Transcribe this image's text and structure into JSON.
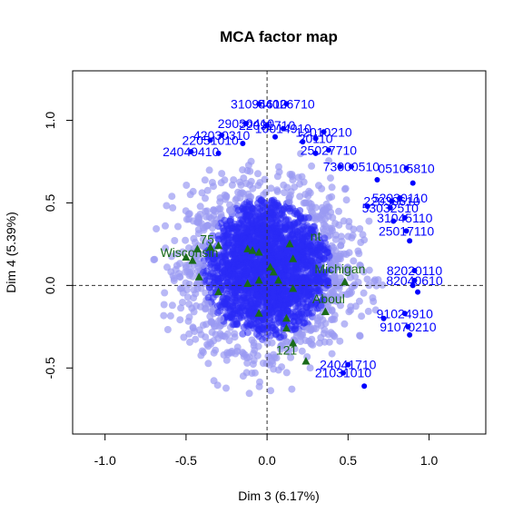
{
  "chart_data": {
    "type": "scatter",
    "title": "MCA factor map",
    "xlabel": "Dim 3 (6.17%)",
    "ylabel": "Dim 4 (5.39%)",
    "xlim": [
      -1.2,
      1.35
    ],
    "ylim": [
      -0.9,
      1.3
    ],
    "xticks": [
      {
        "value": -1.0,
        "label": "-1.0"
      },
      {
        "value": -0.5,
        "label": "-0.5"
      },
      {
        "value": 0.0,
        "label": "0.0"
      },
      {
        "value": 0.5,
        "label": "0.5"
      },
      {
        "value": 1.0,
        "label": "1.0"
      }
    ],
    "yticks": [
      {
        "value": -0.5,
        "label": "-0.5"
      },
      {
        "value": 0.0,
        "label": "0.0"
      },
      {
        "value": 0.5,
        "label": "0.5"
      },
      {
        "value": 1.0,
        "label": "1.0"
      }
    ],
    "reference_lines": {
      "x": 0,
      "y": 0,
      "style": "dashed"
    },
    "colors": {
      "individuals_solid": "#0000ff",
      "individuals_faded": "#9a9af2",
      "categories": "#1a6b1a",
      "reference": "#333333"
    },
    "individual_cloud": {
      "description_count": 2600,
      "center": [
        0.0,
        0.1
      ],
      "spread": [
        0.24,
        0.24
      ],
      "radius_limit": 0.7
    },
    "labeled_individuals": [
      {
        "label": "31094610",
        "x": -0.05,
        "y": 1.1
      },
      {
        "label": "54026710",
        "x": 0.12,
        "y": 1.1
      },
      {
        "label": "29030410",
        "x": -0.13,
        "y": 0.98
      },
      {
        "label": "42030310",
        "x": -0.28,
        "y": 0.91
      },
      {
        "label": "22051010",
        "x": -0.35,
        "y": 0.88
      },
      {
        "label": "22091710",
        "x": 0.0,
        "y": 0.97
      },
      {
        "label": "10014910",
        "x": 0.1,
        "y": 0.95
      },
      {
        "label": "20110",
        "x": 0.3,
        "y": 0.89
      },
      {
        "label": "12010210",
        "x": 0.35,
        "y": 0.93
      },
      {
        "label": "24049410",
        "x": -0.47,
        "y": 0.81
      },
      {
        "label": "25027710",
        "x": 0.38,
        "y": 0.82
      },
      {
        "label": "73000510",
        "x": 0.52,
        "y": 0.72
      },
      {
        "label": "05105810",
        "x": 0.86,
        "y": 0.71
      },
      {
        "label": "52030110",
        "x": 0.82,
        "y": 0.53
      },
      {
        "label": "22030610",
        "x": 0.77,
        "y": 0.51
      },
      {
        "label": "53032510",
        "x": 0.76,
        "y": 0.47
      },
      {
        "label": "31045110",
        "x": 0.85,
        "y": 0.41
      },
      {
        "label": "25017110",
        "x": 0.86,
        "y": 0.33
      },
      {
        "label": "82020110",
        "x": 0.91,
        "y": 0.09
      },
      {
        "label": "82040610",
        "x": 0.91,
        "y": 0.03
      },
      {
        "label": "91024910",
        "x": 0.85,
        "y": -0.17
      },
      {
        "label": "91070210",
        "x": 0.87,
        "y": -0.25
      },
      {
        "label": "24041710",
        "x": 0.5,
        "y": -0.48
      },
      {
        "label": "21031010",
        "x": 0.47,
        "y": -0.53
      }
    ],
    "extra_points": [
      {
        "x": 0.9,
        "y": 0.62
      },
      {
        "x": 0.68,
        "y": 0.64
      },
      {
        "x": 0.62,
        "y": 0.48
      },
      {
        "x": 0.78,
        "y": 0.39
      },
      {
        "x": 0.88,
        "y": 0.27
      },
      {
        "x": 0.9,
        "y": 0.0
      },
      {
        "x": 0.93,
        "y": -0.04
      },
      {
        "x": 0.72,
        "y": -0.2
      },
      {
        "x": 0.88,
        "y": -0.3
      },
      {
        "x": 0.6,
        "y": -0.61
      },
      {
        "x": -0.3,
        "y": 0.8
      },
      {
        "x": 0.05,
        "y": 0.9
      },
      {
        "x": 0.22,
        "y": 0.87
      },
      {
        "x": -0.15,
        "y": 0.86
      },
      {
        "x": 0.45,
        "y": 0.72
      },
      {
        "x": 0.3,
        "y": 0.8
      }
    ],
    "categories": [
      {
        "label": "Wisconsin",
        "x": -0.48,
        "y": 0.2
      },
      {
        "label": "75",
        "x": -0.37,
        "y": 0.28
      },
      {
        "label": "Michigan",
        "x": 0.45,
        "y": 0.1
      },
      {
        "label": "Aboul",
        "x": 0.38,
        "y": -0.08
      },
      {
        "label": "121",
        "x": 0.12,
        "y": -0.39
      },
      {
        "label": "nt",
        "x": 0.3,
        "y": 0.3
      }
    ],
    "category_points": [
      {
        "x": -0.5,
        "y": 0.17
      },
      {
        "x": -0.46,
        "y": 0.15
      },
      {
        "x": -0.43,
        "y": 0.22
      },
      {
        "x": -0.42,
        "y": 0.05
      },
      {
        "x": -0.35,
        "y": 0.23
      },
      {
        "x": -0.3,
        "y": 0.24
      },
      {
        "x": -0.3,
        "y": -0.04
      },
      {
        "x": -0.12,
        "y": 0.22
      },
      {
        "x": -0.09,
        "y": 0.21
      },
      {
        "x": -0.05,
        "y": 0.2
      },
      {
        "x": -0.12,
        "y": 0.01
      },
      {
        "x": -0.05,
        "y": 0.03
      },
      {
        "x": 0.02,
        "y": 0.11
      },
      {
        "x": 0.04,
        "y": 0.08
      },
      {
        "x": 0.07,
        "y": 0.03
      },
      {
        "x": 0.14,
        "y": 0.25
      },
      {
        "x": 0.16,
        "y": 0.16
      },
      {
        "x": 0.16,
        "y": -0.02
      },
      {
        "x": 0.12,
        "y": -0.2
      },
      {
        "x": 0.12,
        "y": -0.26
      },
      {
        "x": -0.05,
        "y": -0.17
      },
      {
        "x": 0.16,
        "y": -0.35
      },
      {
        "x": 0.24,
        "y": -0.46
      },
      {
        "x": 0.36,
        "y": -0.16
      },
      {
        "x": 0.48,
        "y": 0.02
      }
    ]
  }
}
